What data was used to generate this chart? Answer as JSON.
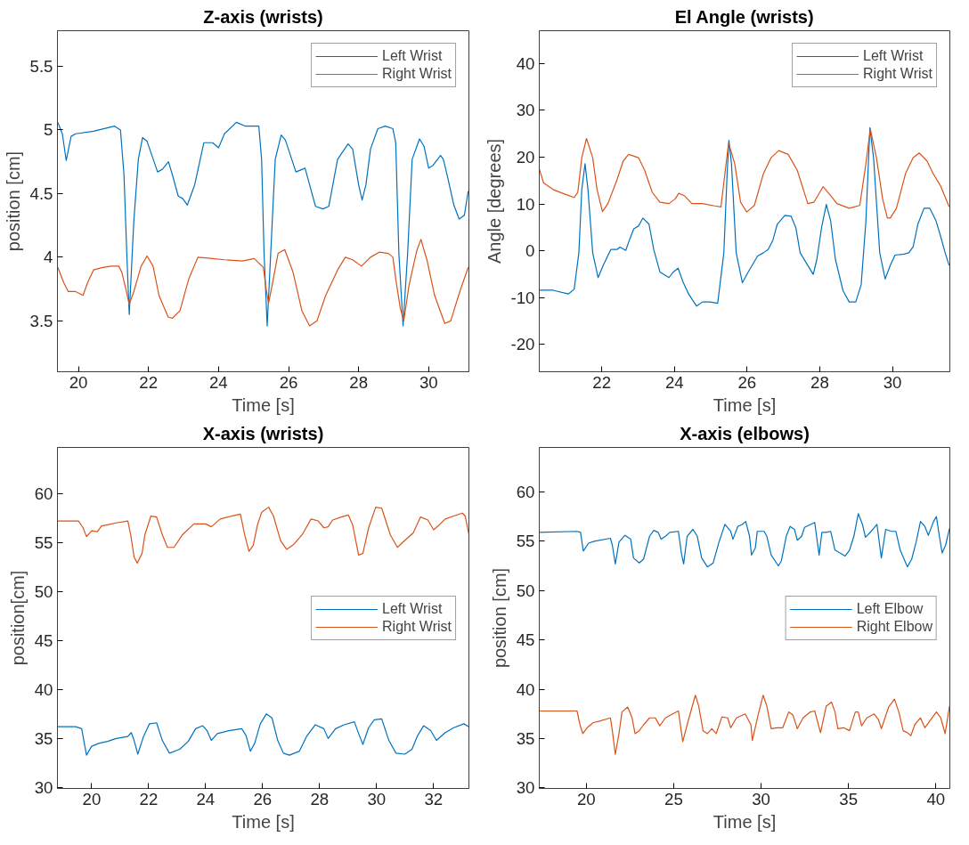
{
  "chart_data": [
    {
      "type": "line",
      "title": "Z-axis (wrists)",
      "xlabel": "Time [s]",
      "ylabel": "position [cm]",
      "xlim": [
        19.4,
        31.15
      ],
      "ylim": [
        3.1,
        5.78
      ],
      "xticks": [
        20,
        22,
        24,
        26,
        28,
        30
      ],
      "yticks": [
        3.5,
        4,
        4.5,
        5,
        5.5
      ],
      "grid": false,
      "legend": "top right",
      "line_style": "solid",
      "marker": "none",
      "series": [
        {
          "name": "Left Wrist",
          "color": "#0072bd",
          "x": [
            19.41,
            19.54,
            19.65,
            19.79,
            19.92,
            20.43,
            21.03,
            21.2,
            21.3,
            21.38,
            21.45,
            21.58,
            21.71,
            21.83,
            21.96,
            22.26,
            22.39,
            22.57,
            22.68,
            22.85,
            22.98,
            23.11,
            23.32,
            23.58,
            23.83,
            24.0,
            24.17,
            24.51,
            24.77,
            25.15,
            25.23,
            25.3,
            25.39,
            25.49,
            25.62,
            25.79,
            25.91,
            26.21,
            26.47,
            26.6,
            26.77,
            26.98,
            27.15,
            27.4,
            27.7,
            27.83,
            28.0,
            28.1,
            28.21,
            28.34,
            28.55,
            28.76,
            28.98,
            29.06,
            29.15,
            29.27,
            29.4,
            29.53,
            29.74,
            29.87,
            30.0,
            30.12,
            30.34,
            30.42,
            30.55,
            30.72,
            30.87,
            31.02,
            31.13
          ],
          "values": [
            5.06,
            4.97,
            4.76,
            4.95,
            4.97,
            4.99,
            5.03,
            5.0,
            4.65,
            4.03,
            3.55,
            4.28,
            4.77,
            4.94,
            4.91,
            4.67,
            4.69,
            4.75,
            4.65,
            4.48,
            4.46,
            4.41,
            4.57,
            4.9,
            4.9,
            4.86,
            4.97,
            5.06,
            5.03,
            5.03,
            4.77,
            4.03,
            3.46,
            4.03,
            4.77,
            4.96,
            4.92,
            4.67,
            4.7,
            4.57,
            4.4,
            4.38,
            4.4,
            4.77,
            4.89,
            4.85,
            4.57,
            4.45,
            4.57,
            4.85,
            5.01,
            5.03,
            5.01,
            4.9,
            4.03,
            3.46,
            4.03,
            4.77,
            4.93,
            4.87,
            4.7,
            4.72,
            4.8,
            4.77,
            4.62,
            4.41,
            4.3,
            4.33,
            4.52
          ]
        },
        {
          "name": "Right Wrist",
          "color": "#d95319",
          "x": [
            19.41,
            19.58,
            19.71,
            19.92,
            20.13,
            20.26,
            20.43,
            20.69,
            20.94,
            21.15,
            21.24,
            21.37,
            21.45,
            21.58,
            21.79,
            21.96,
            22.13,
            22.3,
            22.56,
            22.68,
            22.9,
            23.15,
            23.41,
            23.83,
            24.17,
            24.68,
            25.02,
            25.28,
            25.36,
            25.43,
            25.53,
            25.7,
            25.89,
            26.13,
            26.38,
            26.6,
            26.81,
            27.06,
            27.4,
            27.62,
            27.83,
            28.08,
            28.34,
            28.59,
            28.85,
            28.98,
            29.06,
            29.19,
            29.29,
            29.44,
            29.66,
            29.78,
            29.95,
            30.17,
            30.46,
            30.63,
            30.89,
            31.13
          ],
          "values": [
            3.92,
            3.8,
            3.73,
            3.73,
            3.7,
            3.8,
            3.9,
            3.92,
            3.93,
            3.93,
            3.88,
            3.73,
            3.63,
            3.73,
            3.93,
            4.01,
            3.93,
            3.7,
            3.53,
            3.52,
            3.58,
            3.83,
            4.0,
            3.99,
            3.98,
            3.97,
            3.99,
            3.92,
            3.75,
            3.64,
            3.78,
            4.03,
            4.06,
            3.88,
            3.58,
            3.46,
            3.5,
            3.7,
            3.9,
            4.0,
            3.98,
            3.93,
            4.0,
            4.04,
            4.03,
            4.0,
            3.83,
            3.6,
            3.5,
            3.78,
            4.05,
            4.14,
            3.98,
            3.7,
            3.48,
            3.5,
            3.73,
            3.92
          ]
        }
      ]
    },
    {
      "type": "line",
      "title": "El Angle (wrists)",
      "xlabel": "Time [s]",
      "ylabel": "Angle [degrees]",
      "xlim": [
        20.28,
        31.58
      ],
      "ylim": [
        -25.8,
        47
      ],
      "xticks": [
        22,
        24,
        26,
        28,
        30
      ],
      "yticks": [
        -20,
        -10,
        0,
        10,
        20,
        30,
        40
      ],
      "grid": false,
      "legend": "top right",
      "line_style": "solid",
      "marker": "none",
      "series": [
        {
          "name": "Left Wrist",
          "color": "#0072bd",
          "x": [
            20.28,
            20.66,
            21.08,
            21.24,
            21.37,
            21.45,
            21.54,
            21.62,
            21.75,
            21.9,
            22.04,
            22.25,
            22.42,
            22.5,
            22.66,
            22.76,
            22.88,
            23.01,
            23.13,
            23.3,
            23.43,
            23.6,
            23.85,
            23.97,
            24.1,
            24.23,
            24.39,
            24.61,
            24.77,
            24.98,
            25.19,
            25.36,
            25.45,
            25.5,
            25.57,
            25.7,
            25.87,
            26.03,
            26.29,
            26.45,
            26.58,
            26.71,
            26.83,
            27.04,
            27.21,
            27.34,
            27.46,
            27.67,
            27.82,
            27.92,
            28.05,
            28.18,
            28.3,
            28.43,
            28.64,
            28.81,
            28.99,
            29.14,
            29.27,
            29.38,
            29.48,
            29.65,
            29.8,
            29.94,
            30.07,
            30.32,
            30.45,
            30.57,
            30.7,
            30.87,
            31.03,
            31.2,
            31.33,
            31.45,
            31.56
          ],
          "values": [
            -8.4,
            -8.4,
            -9.2,
            -8.2,
            -0.4,
            13.1,
            18.6,
            13.1,
            -0.4,
            -5.7,
            -3.1,
            0.3,
            0.3,
            0.8,
            0.1,
            2.3,
            4.7,
            5.3,
            7.0,
            5.7,
            0.3,
            -4.5,
            -5.7,
            -4.5,
            -3.7,
            -6.5,
            -9.2,
            -11.8,
            -10.9,
            -10.9,
            -11.2,
            -0.4,
            16.5,
            23.6,
            18.6,
            -0.4,
            -6.8,
            -4.5,
            -1.1,
            -0.4,
            0.3,
            2.3,
            5.7,
            7.6,
            7.4,
            5.0,
            -0.4,
            -3.1,
            -5.0,
            -1.8,
            5.0,
            9.9,
            6.4,
            -1.8,
            -8.5,
            -10.9,
            -10.9,
            -7.2,
            6.4,
            26.3,
            19.9,
            -0.4,
            -6.0,
            -3.1,
            -0.9,
            -0.7,
            -0.4,
            0.9,
            5.7,
            9.1,
            9.1,
            6.4,
            3.0,
            -0.4,
            -3.1
          ]
        },
        {
          "name": "Right Wrist",
          "color": "#d95319",
          "x": [
            20.28,
            20.4,
            20.66,
            20.99,
            21.24,
            21.34,
            21.45,
            21.58,
            21.75,
            21.87,
            22.02,
            22.17,
            22.42,
            22.59,
            22.74,
            23.01,
            23.18,
            23.39,
            23.6,
            23.85,
            24.02,
            24.12,
            24.27,
            24.48,
            24.77,
            25.11,
            25.28,
            25.4,
            25.49,
            25.66,
            25.82,
            25.99,
            26.2,
            26.45,
            26.66,
            26.87,
            27.13,
            27.38,
            27.67,
            27.84,
            28.09,
            28.3,
            28.47,
            28.81,
            29.1,
            29.27,
            29.39,
            29.56,
            29.73,
            29.86,
            29.94,
            30.11,
            30.36,
            30.57,
            30.74,
            30.95,
            31.12,
            31.33,
            31.56
          ],
          "values": [
            17.5,
            14.5,
            13.1,
            12.1,
            11.4,
            12.5,
            19.9,
            24.0,
            19.9,
            13.1,
            8.4,
            10.1,
            15.2,
            19.2,
            20.6,
            19.9,
            17.2,
            12.5,
            10.4,
            10.1,
            11.1,
            12.3,
            11.8,
            10.1,
            10.1,
            9.6,
            9.4,
            17.2,
            23.0,
            18.6,
            10.4,
            8.3,
            9.7,
            16.5,
            19.9,
            21.4,
            20.6,
            17.2,
            10.1,
            10.4,
            13.7,
            11.8,
            10.1,
            9.1,
            9.7,
            18.6,
            26.0,
            19.9,
            11.1,
            7.0,
            7.0,
            9.1,
            16.5,
            19.9,
            20.9,
            19.2,
            16.5,
            13.8,
            9.4
          ]
        }
      ]
    },
    {
      "type": "line",
      "title": "X-axis (wrists)",
      "xlabel": "Time [s]",
      "ylabel": "position[cm]",
      "xlim": [
        18.8,
        33.24
      ],
      "ylim": [
        29.9,
        64.7
      ],
      "xticks": [
        20,
        22,
        24,
        26,
        28,
        30,
        32
      ],
      "yticks": [
        30,
        35,
        40,
        45,
        50,
        55,
        60
      ],
      "grid": false,
      "legend": "right",
      "line_style": "solid",
      "marker": "none",
      "series": [
        {
          "name": "Left Wrist",
          "color": "#0072bd",
          "x": [
            18.81,
            19.44,
            19.65,
            19.82,
            20.0,
            20.25,
            20.56,
            20.86,
            21.27,
            21.39,
            21.49,
            21.62,
            21.82,
            22.03,
            22.28,
            22.48,
            22.73,
            23.09,
            23.39,
            23.65,
            23.9,
            24.05,
            24.2,
            24.41,
            24.81,
            25.27,
            25.42,
            25.57,
            25.72,
            25.92,
            26.13,
            26.33,
            26.53,
            26.73,
            26.94,
            27.29,
            27.54,
            27.85,
            28.15,
            28.3,
            28.56,
            28.86,
            29.22,
            29.37,
            29.52,
            29.72,
            29.92,
            30.18,
            30.43,
            30.68,
            30.99,
            31.24,
            31.44,
            31.65,
            31.9,
            32.1,
            32.41,
            32.71,
            33.06,
            33.24
          ],
          "values": [
            36.2,
            36.2,
            36.0,
            33.3,
            34.2,
            34.5,
            34.7,
            35.0,
            35.2,
            35.6,
            34.8,
            33.4,
            35.2,
            36.5,
            36.6,
            34.8,
            33.5,
            33.9,
            34.7,
            36.0,
            36.3,
            35.8,
            34.8,
            35.5,
            35.8,
            36.0,
            35.3,
            33.7,
            34.5,
            36.5,
            37.5,
            37.1,
            34.8,
            33.5,
            33.3,
            33.7,
            35.2,
            36.4,
            36.0,
            35.0,
            36.0,
            36.4,
            36.7,
            35.5,
            34.4,
            36.1,
            36.9,
            37.0,
            34.8,
            33.5,
            33.4,
            33.9,
            35.3,
            36.3,
            35.8,
            34.8,
            35.6,
            36.1,
            36.5,
            36.2
          ]
        },
        {
          "name": "Right Wrist",
          "color": "#d95319",
          "x": [
            18.81,
            19.54,
            19.7,
            19.82,
            20.0,
            20.2,
            20.35,
            20.56,
            20.86,
            21.27,
            21.37,
            21.49,
            21.6,
            21.77,
            21.87,
            22.08,
            22.28,
            22.48,
            22.66,
            22.89,
            23.19,
            23.59,
            24.0,
            24.2,
            24.51,
            24.91,
            25.22,
            25.37,
            25.52,
            25.67,
            25.82,
            25.97,
            26.21,
            26.38,
            26.63,
            26.84,
            27.09,
            27.39,
            27.7,
            27.95,
            28.15,
            28.3,
            28.46,
            28.76,
            29.01,
            29.16,
            29.37,
            29.52,
            29.72,
            29.97,
            30.18,
            30.48,
            30.73,
            30.99,
            31.29,
            31.54,
            31.8,
            32.0,
            32.2,
            32.41,
            32.71,
            33.01,
            33.11,
            33.24
          ],
          "values": [
            57.2,
            57.2,
            56.5,
            55.6,
            56.2,
            56.1,
            56.7,
            56.8,
            57.0,
            57.2,
            55.8,
            53.5,
            52.9,
            53.9,
            55.8,
            57.7,
            57.6,
            55.8,
            54.5,
            54.5,
            55.8,
            56.9,
            56.9,
            56.6,
            57.4,
            57.7,
            57.9,
            55.8,
            54.1,
            54.7,
            56.8,
            58.1,
            58.6,
            57.7,
            55.2,
            54.3,
            54.8,
            55.8,
            57.4,
            57.2,
            56.5,
            56.6,
            57.3,
            57.6,
            57.8,
            56.8,
            53.7,
            53.9,
            56.5,
            58.6,
            58.5,
            55.8,
            54.5,
            55.2,
            56.0,
            57.6,
            57.3,
            56.3,
            56.8,
            57.4,
            57.7,
            58.0,
            57.7,
            55.8
          ]
        }
      ]
    },
    {
      "type": "line",
      "title": "X-axis (elbows)",
      "xlabel": "Time [s]",
      "ylabel": "position [cm]",
      "xlim": [
        17.31,
        40.8
      ],
      "ylim": [
        29.95,
        64.5
      ],
      "xticks": [
        20,
        25,
        30,
        35,
        40
      ],
      "yticks": [
        30,
        35,
        40,
        45,
        50,
        55,
        60
      ],
      "grid": false,
      "legend": "right",
      "line_style": "solid",
      "marker": "none",
      "series": [
        {
          "name": "Left Elbow",
          "color": "#0072bd",
          "x": [
            17.31,
            19.47,
            19.67,
            19.83,
            20.13,
            20.46,
            21.38,
            21.49,
            21.66,
            21.87,
            22.21,
            22.54,
            22.7,
            23.03,
            23.28,
            23.62,
            23.86,
            24.11,
            24.28,
            24.53,
            24.78,
            25.27,
            25.44,
            25.57,
            25.77,
            26.1,
            26.35,
            26.6,
            26.93,
            27.26,
            27.59,
            27.93,
            28.26,
            28.39,
            28.67,
            28.92,
            29.12,
            29.34,
            29.45,
            29.67,
            29.78,
            30.17,
            30.33,
            30.58,
            30.99,
            31.16,
            31.44,
            31.66,
            31.91,
            32.07,
            32.32,
            32.49,
            33.07,
            33.32,
            33.48,
            33.73,
            33.98,
            34.23,
            34.81,
            35.06,
            35.31,
            35.56,
            35.8,
            35.97,
            36.3,
            36.63,
            36.88,
            37.13,
            37.46,
            37.71,
            37.96,
            38.37,
            38.62,
            38.87,
            39.12,
            39.37,
            39.57,
            39.87,
            40.03,
            40.2,
            40.36,
            40.56,
            40.78
          ],
          "values": [
            55.9,
            56.0,
            55.9,
            54.0,
            54.8,
            55.0,
            55.3,
            54.6,
            52.7,
            54.9,
            55.6,
            55.2,
            53.3,
            52.8,
            53.2,
            55.5,
            56.1,
            55.9,
            55.2,
            55.5,
            55.9,
            56.0,
            53.8,
            52.7,
            55.5,
            56.2,
            55.5,
            53.3,
            52.4,
            52.8,
            54.9,
            56.7,
            56.0,
            55.2,
            56.5,
            56.7,
            57.0,
            55.5,
            53.6,
            54.3,
            56.0,
            56.0,
            55.5,
            53.6,
            52.5,
            53.0,
            55.5,
            56.5,
            56.2,
            55.1,
            55.5,
            56.4,
            56.9,
            53.6,
            55.9,
            55.9,
            56.0,
            54.1,
            53.5,
            54.1,
            55.5,
            57.8,
            56.7,
            55.4,
            56.0,
            56.7,
            53.3,
            56.2,
            56.0,
            56.0,
            54.1,
            52.4,
            53.2,
            54.9,
            57.0,
            56.5,
            55.6,
            57.0,
            57.5,
            55.5,
            53.8,
            54.6,
            56.3
          ]
        },
        {
          "name": "Right Elbow",
          "color": "#d95319",
          "x": [
            17.31,
            19.47,
            19.64,
            19.8,
            20.05,
            20.38,
            20.8,
            21.38,
            21.49,
            21.66,
            21.87,
            22.04,
            22.37,
            22.62,
            22.79,
            23.03,
            23.28,
            23.62,
            23.95,
            24.2,
            24.53,
            24.94,
            25.27,
            25.52,
            25.77,
            26.02,
            26.24,
            26.43,
            26.68,
            26.93,
            27.18,
            27.43,
            27.76,
            28.09,
            28.26,
            28.59,
            29.09,
            29.42,
            29.5,
            29.83,
            30.12,
            30.33,
            30.58,
            30.91,
            31.24,
            31.58,
            31.82,
            32.07,
            32.4,
            32.82,
            33.07,
            33.4,
            33.73,
            34.03,
            34.23,
            34.39,
            34.73,
            35.06,
            35.39,
            35.56,
            35.75,
            36.05,
            36.47,
            36.72,
            36.88,
            37.3,
            37.63,
            37.88,
            38.13,
            38.37,
            38.57,
            38.79,
            39.12,
            39.37,
            39.7,
            40.03,
            40.28,
            40.53,
            40.78
          ],
          "values": [
            37.8,
            37.8,
            36.4,
            35.5,
            36.1,
            36.6,
            36.8,
            37.1,
            35.8,
            33.4,
            35.5,
            37.7,
            38.2,
            37.1,
            35.5,
            35.8,
            36.4,
            37.1,
            37.1,
            36.3,
            37.1,
            37.5,
            37.8,
            34.7,
            36.4,
            38.0,
            39.4,
            38.3,
            35.8,
            35.5,
            36.0,
            35.5,
            37.2,
            37.1,
            36.1,
            37.1,
            37.5,
            36.4,
            34.8,
            37.4,
            39.4,
            38.3,
            36.0,
            36.1,
            36.1,
            37.7,
            37.4,
            36.0,
            37.1,
            37.7,
            37.8,
            35.6,
            38.3,
            38.7,
            37.7,
            36.0,
            36.1,
            35.8,
            37.7,
            37.7,
            36.3,
            37.1,
            37.5,
            36.9,
            36.0,
            38.2,
            39.0,
            37.7,
            35.8,
            35.6,
            35.3,
            36.4,
            37.1,
            36.1,
            36.9,
            37.7,
            37.1,
            35.5,
            38.3
          ]
        }
      ]
    }
  ]
}
